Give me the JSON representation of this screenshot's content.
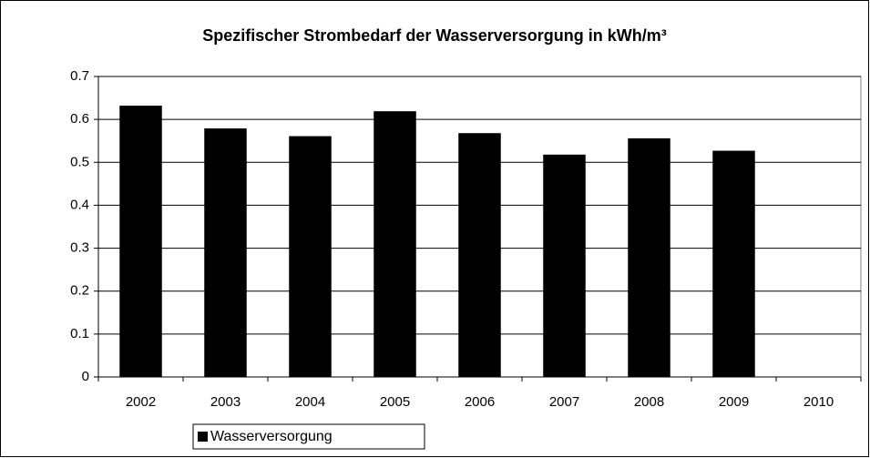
{
  "chart_data": {
    "type": "bar",
    "title": "Spezifischer Strombedarf der Wasserversorgung in kWh/m³",
    "categories": [
      "2002",
      "2003",
      "2004",
      "2005",
      "2006",
      "2007",
      "2008",
      "2009",
      "2010"
    ],
    "series": [
      {
        "name": "Wasserversorgung",
        "color": "#000000",
        "values": [
          0.632,
          0.579,
          0.561,
          0.619,
          0.568,
          0.518,
          0.556,
          0.527,
          null
        ]
      }
    ],
    "ylim": [
      0,
      0.7
    ],
    "yticks": [
      0,
      0.1,
      0.2,
      0.3,
      0.4,
      0.5,
      0.6,
      0.7
    ],
    "grid": true
  }
}
